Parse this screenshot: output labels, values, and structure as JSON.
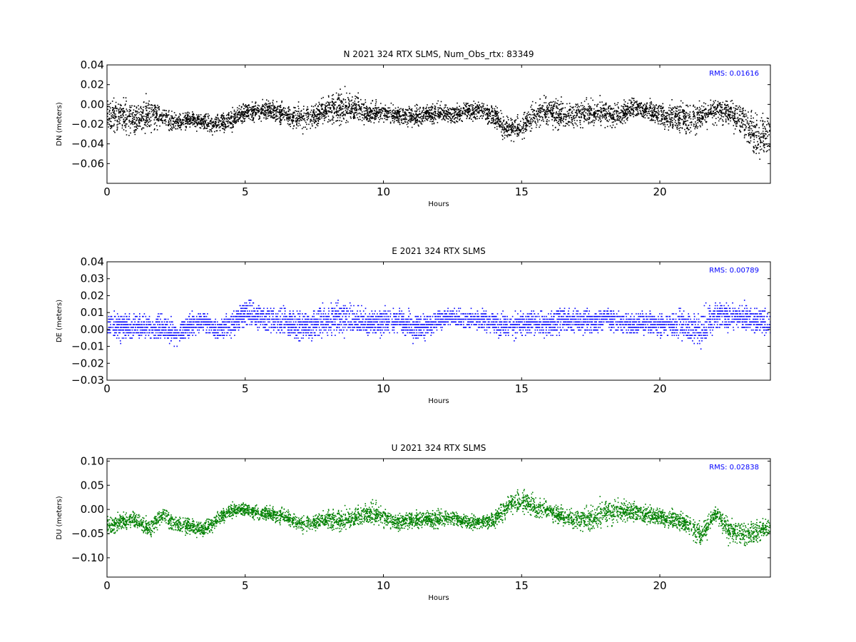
{
  "chart_data": [
    {
      "type": "scatter",
      "title": "N 2021 324 RTX  SLMS, Num_Obs_rtx: 83349",
      "xlabel": "Hours",
      "ylabel": "DN (meters)",
      "xlim": [
        0,
        24
      ],
      "ylim": [
        -0.08,
        0.04
      ],
      "xticks": [
        0,
        5,
        10,
        15,
        20
      ],
      "yticks": [
        -0.06,
        -0.04,
        -0.02,
        0.0,
        0.02,
        0.04
      ],
      "ytick_labels": [
        "−0.06",
        "−0.04",
        "−0.02",
        "0.00",
        "0.02",
        "0.04"
      ],
      "color": "#000000",
      "annotation": "RMS:  0.01616",
      "annotation_color": "#0000ff",
      "series": [
        {
          "x": [
            0,
            0.5,
            1.0,
            1.5,
            2.0,
            2.5,
            3.0,
            3.5,
            4.0,
            4.5,
            5.0,
            5.5,
            6.0,
            6.5,
            7.0,
            7.5,
            8.0,
            8.5,
            9.0,
            9.5,
            10.0,
            10.5,
            11.0,
            11.5,
            12.0,
            12.5,
            13.0,
            13.5,
            14.0,
            14.5,
            15.0,
            15.5,
            16.0,
            16.5,
            17.0,
            17.5,
            18.0,
            18.5,
            19.0,
            19.5,
            20.0,
            20.5,
            21.0,
            21.5,
            22.0,
            22.5,
            23.0,
            23.5,
            24.0
          ],
          "center": [
            -0.008,
            -0.012,
            -0.015,
            -0.01,
            -0.012,
            -0.018,
            -0.015,
            -0.018,
            -0.02,
            -0.015,
            -0.008,
            -0.005,
            -0.006,
            -0.01,
            -0.015,
            -0.01,
            -0.005,
            -0.002,
            -0.003,
            -0.008,
            -0.008,
            -0.01,
            -0.012,
            -0.01,
            -0.008,
            -0.01,
            -0.006,
            -0.005,
            -0.012,
            -0.025,
            -0.022,
            -0.01,
            -0.005,
            -0.012,
            -0.01,
            -0.008,
            -0.008,
            -0.01,
            -0.003,
            -0.005,
            -0.01,
            -0.012,
            -0.015,
            -0.01,
            -0.006,
            -0.008,
            -0.015,
            -0.035,
            -0.03
          ],
          "spread": [
            0.025,
            0.03,
            0.03,
            0.028,
            0.018,
            0.016,
            0.014,
            0.015,
            0.015,
            0.018,
            0.018,
            0.016,
            0.016,
            0.02,
            0.022,
            0.022,
            0.024,
            0.026,
            0.025,
            0.018,
            0.016,
            0.016,
            0.018,
            0.016,
            0.016,
            0.016,
            0.016,
            0.016,
            0.02,
            0.022,
            0.022,
            0.022,
            0.028,
            0.024,
            0.022,
            0.02,
            0.022,
            0.022,
            0.016,
            0.016,
            0.022,
            0.026,
            0.03,
            0.026,
            0.022,
            0.024,
            0.035,
            0.04,
            0.04
          ]
        }
      ]
    },
    {
      "type": "scatter",
      "title": "E 2021 324 RTX  SLMS",
      "xlabel": "Hours",
      "ylabel": "DE (meters)",
      "xlim": [
        0,
        24
      ],
      "ylim": [
        -0.03,
        0.04
      ],
      "xticks": [
        0,
        5,
        10,
        15,
        20
      ],
      "yticks": [
        -0.03,
        -0.02,
        -0.01,
        0.0,
        0.01,
        0.02,
        0.03,
        0.04
      ],
      "ytick_labels": [
        "−0.03",
        "−0.02",
        "−0.01",
        "0.00",
        "0.01",
        "0.02",
        "0.03",
        "0.04"
      ],
      "color": "#0000ff",
      "annotation": "RMS:  0.00789",
      "annotation_color": "#0000ff",
      "series": [
        {
          "x": [
            0,
            0.5,
            1.0,
            1.5,
            2.0,
            2.5,
            3.0,
            3.5,
            4.0,
            4.5,
            5.0,
            5.5,
            6.0,
            6.5,
            7.0,
            7.5,
            8.0,
            8.5,
            9.0,
            9.5,
            10.0,
            10.5,
            11.0,
            11.5,
            12.0,
            12.5,
            13.0,
            13.5,
            14.0,
            14.5,
            15.0,
            15.5,
            16.0,
            16.5,
            17.0,
            17.5,
            18.0,
            18.5,
            19.0,
            19.5,
            20.0,
            20.5,
            21.0,
            21.5,
            22.0,
            22.5,
            23.0,
            23.5,
            24.0
          ],
          "center": [
            0.003,
            0.002,
            0.002,
            0.002,
            0.001,
            -0.002,
            0.003,
            0.005,
            0.0,
            0.004,
            0.01,
            0.009,
            0.006,
            0.004,
            0.002,
            0.004,
            0.006,
            0.008,
            0.006,
            0.004,
            0.005,
            0.006,
            0.002,
            0.002,
            0.006,
            0.007,
            0.006,
            0.006,
            0.004,
            0.003,
            0.004,
            0.004,
            0.004,
            0.006,
            0.005,
            0.005,
            0.007,
            0.005,
            0.004,
            0.004,
            0.003,
            0.003,
            0.003,
            0.0,
            0.009,
            0.008,
            0.007,
            0.006,
            0.003
          ],
          "spread": [
            0.012,
            0.013,
            0.013,
            0.013,
            0.013,
            0.012,
            0.012,
            0.012,
            0.01,
            0.012,
            0.014,
            0.013,
            0.013,
            0.013,
            0.015,
            0.015,
            0.015,
            0.016,
            0.014,
            0.012,
            0.012,
            0.012,
            0.013,
            0.012,
            0.009,
            0.009,
            0.01,
            0.01,
            0.011,
            0.012,
            0.012,
            0.012,
            0.013,
            0.013,
            0.012,
            0.012,
            0.012,
            0.012,
            0.012,
            0.012,
            0.012,
            0.012,
            0.015,
            0.018,
            0.016,
            0.014,
            0.013,
            0.013,
            0.013
          ]
        }
      ]
    },
    {
      "type": "scatter",
      "title": "U 2021 324 RTX  SLMS",
      "xlabel": "Hours",
      "ylabel": "DU (meters)",
      "xlim": [
        0,
        24
      ],
      "ylim": [
        -0.14,
        0.105
      ],
      "xticks": [
        0,
        5,
        10,
        15,
        20
      ],
      "yticks": [
        -0.1,
        -0.05,
        0.0,
        0.05,
        0.1
      ],
      "ytick_labels": [
        "−0.10",
        "−0.05",
        "0.00",
        "0.05",
        "0.10"
      ],
      "color": "#008000",
      "annotation": "RMS:  0.02838",
      "annotation_color": "#0000ff",
      "series": [
        {
          "x": [
            0,
            0.5,
            1.0,
            1.5,
            2.0,
            2.5,
            3.0,
            3.5,
            4.0,
            4.5,
            5.0,
            5.5,
            6.0,
            6.5,
            7.0,
            7.5,
            8.0,
            8.5,
            9.0,
            9.5,
            10.0,
            10.5,
            11.0,
            11.5,
            12.0,
            12.5,
            13.0,
            13.5,
            14.0,
            14.5,
            15.0,
            15.5,
            16.0,
            16.5,
            17.0,
            17.5,
            18.0,
            18.5,
            19.0,
            19.5,
            20.0,
            20.5,
            21.0,
            21.5,
            22.0,
            22.5,
            23.0,
            23.5,
            24.0
          ],
          "center": [
            -0.03,
            -0.025,
            -0.02,
            -0.04,
            -0.01,
            -0.03,
            -0.035,
            -0.04,
            -0.02,
            0.0,
            0.0,
            -0.005,
            -0.01,
            -0.015,
            -0.03,
            -0.025,
            -0.02,
            -0.02,
            -0.015,
            -0.005,
            -0.015,
            -0.025,
            -0.02,
            -0.02,
            -0.02,
            -0.015,
            -0.025,
            -0.025,
            -0.02,
            0.01,
            0.02,
            0.005,
            0.0,
            -0.015,
            -0.02,
            -0.02,
            -0.005,
            0.0,
            -0.005,
            -0.01,
            -0.015,
            -0.02,
            -0.03,
            -0.05,
            -0.01,
            -0.04,
            -0.05,
            -0.045,
            -0.035
          ],
          "spread": [
            0.035,
            0.03,
            0.03,
            0.03,
            0.03,
            0.03,
            0.03,
            0.025,
            0.025,
            0.025,
            0.025,
            0.025,
            0.025,
            0.03,
            0.03,
            0.03,
            0.035,
            0.035,
            0.035,
            0.04,
            0.035,
            0.03,
            0.03,
            0.03,
            0.03,
            0.025,
            0.025,
            0.025,
            0.03,
            0.035,
            0.045,
            0.035,
            0.03,
            0.03,
            0.035,
            0.04,
            0.05,
            0.045,
            0.03,
            0.03,
            0.03,
            0.035,
            0.035,
            0.045,
            0.035,
            0.045,
            0.05,
            0.04,
            0.035
          ]
        }
      ]
    }
  ]
}
